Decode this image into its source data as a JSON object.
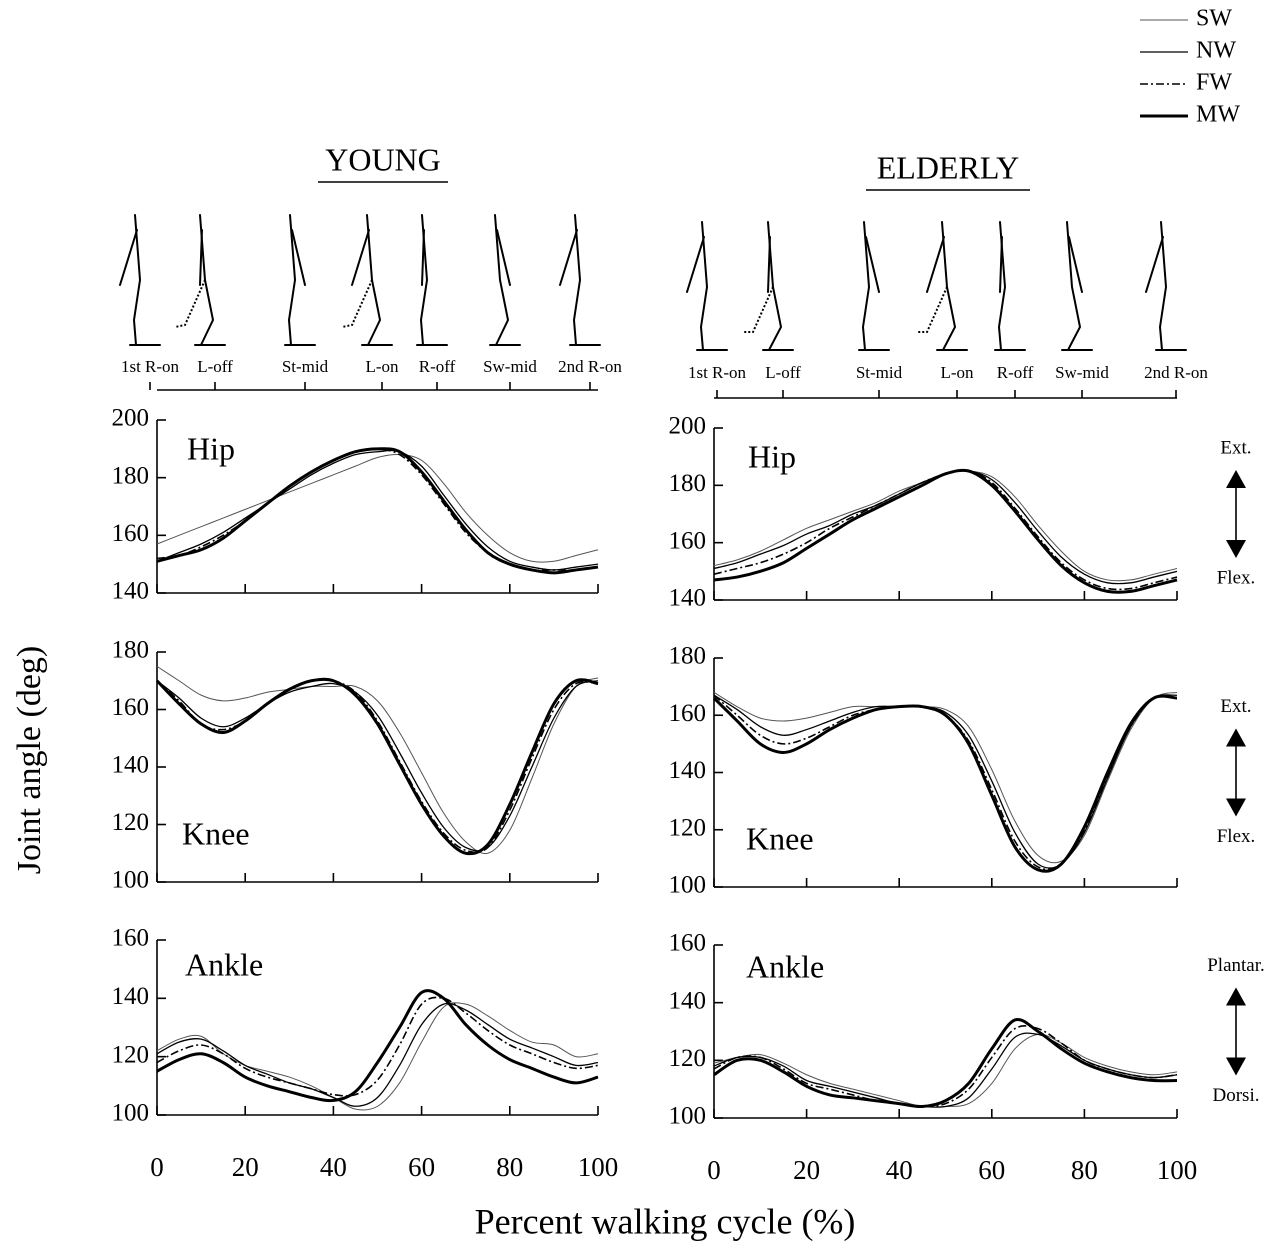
{
  "titles": [
    "YOUNG",
    "ELDERLY"
  ],
  "phases": [
    [
      "1st R-on",
      "L-off",
      "St-mid",
      "L-on",
      "R-off",
      "Sw-mid",
      "2nd R-on"
    ],
    [
      "1st R-on",
      "L-off",
      "St-mid",
      "L-on",
      "R-off",
      "Sw-mid",
      "2nd R-on"
    ]
  ],
  "y_label": "Joint angle (deg)",
  "x_label": "Percent walking cycle (%)",
  "chart_data": [
    {
      "type": "line",
      "label": "Hip",
      "xlim": [
        0,
        100
      ],
      "xticks": [
        0,
        20,
        40,
        60,
        80,
        100
      ],
      "xtick_labels": false,
      "ylim": [
        140,
        200
      ],
      "yticks": [
        140,
        160,
        180,
        200
      ],
      "x": [
        0,
        5,
        10,
        15,
        20,
        25,
        30,
        35,
        40,
        45,
        50,
        55,
        60,
        65,
        70,
        75,
        80,
        85,
        90,
        95,
        100
      ],
      "series": [
        {
          "name": "SW",
          "color": "#555555",
          "width": 1,
          "dash": "none",
          "values": [
            157,
            160,
            163,
            166,
            169,
            172,
            175,
            178,
            181,
            184,
            187,
            188,
            186,
            178,
            168,
            160,
            154,
            151,
            151,
            153,
            155
          ]
        },
        {
          "name": "NW",
          "color": "#000000",
          "width": 1.3,
          "dash": "none",
          "values": [
            151,
            154,
            157,
            161,
            166,
            171,
            176,
            181,
            185,
            188,
            189,
            189,
            184,
            174,
            164,
            156,
            151,
            149,
            148,
            149,
            150
          ]
        },
        {
          "name": "FW",
          "color": "#000000",
          "width": 1.6,
          "dash": "8 3 2 3",
          "values": [
            152,
            153,
            156,
            160,
            165,
            171,
            177,
            182,
            186,
            189,
            190,
            188,
            181,
            171,
            161,
            154,
            150,
            148,
            148,
            148,
            149
          ]
        },
        {
          "name": "MW",
          "color": "#000000",
          "width": 3,
          "dash": "none",
          "values": [
            151,
            153,
            155,
            159,
            165,
            171,
            177,
            182,
            186,
            189,
            190,
            189,
            182,
            172,
            162,
            154,
            150,
            148,
            147,
            148,
            149
          ]
        }
      ]
    },
    {
      "type": "line",
      "label": "Knee",
      "xlim": [
        0,
        100
      ],
      "xticks": [
        0,
        20,
        40,
        60,
        80,
        100
      ],
      "xtick_labels": false,
      "ylim": [
        100,
        180
      ],
      "yticks": [
        100,
        120,
        140,
        160,
        180
      ],
      "x": [
        0,
        5,
        10,
        15,
        20,
        25,
        30,
        35,
        40,
        45,
        50,
        55,
        60,
        65,
        70,
        75,
        80,
        85,
        90,
        95,
        100
      ],
      "series": [
        {
          "name": "SW",
          "color": "#555555",
          "width": 1,
          "dash": "none",
          "values": [
            175,
            170,
            165,
            163,
            164,
            166,
            167,
            168,
            168,
            168,
            163,
            152,
            138,
            124,
            114,
            110,
            118,
            136,
            155,
            168,
            171
          ]
        },
        {
          "name": "NW",
          "color": "#000000",
          "width": 1.3,
          "dash": "none",
          "values": [
            170,
            164,
            157,
            154,
            157,
            162,
            166,
            168,
            169,
            166,
            158,
            145,
            131,
            119,
            112,
            112,
            123,
            140,
            157,
            168,
            170
          ]
        },
        {
          "name": "FW",
          "color": "#000000",
          "width": 1.6,
          "dash": "8 3 2 3",
          "values": [
            170,
            163,
            155,
            153,
            156,
            162,
            167,
            170,
            170,
            166,
            156,
            142,
            128,
            117,
            111,
            112,
            125,
            143,
            160,
            169,
            169
          ]
        },
        {
          "name": "MW",
          "color": "#000000",
          "width": 3,
          "dash": "none",
          "values": [
            170,
            162,
            155,
            152,
            156,
            162,
            167,
            170,
            170,
            165,
            155,
            141,
            127,
            116,
            110,
            113,
            127,
            145,
            162,
            170,
            169
          ]
        }
      ]
    },
    {
      "type": "line",
      "label": "Ankle",
      "xlim": [
        0,
        100
      ],
      "xticks": [
        0,
        20,
        40,
        60,
        80,
        100
      ],
      "xtick_labels": true,
      "ylim": [
        100,
        160
      ],
      "yticks": [
        100,
        120,
        140,
        160
      ],
      "x": [
        0,
        5,
        10,
        15,
        20,
        25,
        30,
        35,
        40,
        45,
        50,
        55,
        60,
        65,
        70,
        75,
        80,
        85,
        90,
        95,
        100
      ],
      "series": [
        {
          "name": "SW",
          "color": "#555555",
          "width": 1,
          "dash": "none",
          "values": [
            122,
            126,
            127,
            121,
            117,
            115,
            113,
            110,
            106,
            102,
            103,
            111,
            125,
            137,
            138,
            134,
            129,
            125,
            124,
            120,
            121
          ]
        },
        {
          "name": "NW",
          "color": "#000000",
          "width": 1.3,
          "dash": "none",
          "values": [
            121,
            125,
            126,
            122,
            117,
            114,
            111,
            109,
            106,
            103,
            106,
            117,
            131,
            138,
            136,
            131,
            126,
            123,
            120,
            117,
            118
          ]
        },
        {
          "name": "FW",
          "color": "#000000",
          "width": 1.6,
          "dash": "8 3 2 3",
          "values": [
            118,
            122,
            124,
            121,
            116,
            113,
            111,
            109,
            107,
            107,
            112,
            124,
            138,
            140,
            135,
            129,
            124,
            121,
            118,
            116,
            117
          ]
        },
        {
          "name": "MW",
          "color": "#000000",
          "width": 3,
          "dash": "none",
          "values": [
            115,
            119,
            121,
            118,
            113,
            110,
            108,
            106,
            105,
            108,
            118,
            130,
            142,
            140,
            131,
            124,
            119,
            116,
            113,
            111,
            113
          ]
        }
      ]
    },
    {
      "type": "line",
      "label": "Hip",
      "annotations": [
        "Ext.",
        "Flex."
      ],
      "xlim": [
        0,
        100
      ],
      "xticks": [
        0,
        20,
        40,
        60,
        80,
        100
      ],
      "xtick_labels": false,
      "ylim": [
        140,
        200
      ],
      "yticks": [
        140,
        160,
        180,
        200
      ],
      "x": [
        0,
        5,
        10,
        15,
        20,
        25,
        30,
        35,
        40,
        45,
        50,
        55,
        60,
        65,
        70,
        75,
        80,
        85,
        90,
        95,
        100
      ],
      "series": [
        {
          "name": "SW",
          "color": "#555555",
          "width": 1,
          "dash": "none",
          "values": [
            152,
            154,
            157,
            161,
            165,
            168,
            171,
            174,
            178,
            181,
            184,
            185,
            183,
            176,
            166,
            157,
            150,
            147,
            147,
            149,
            151
          ]
        },
        {
          "name": "NW",
          "color": "#000000",
          "width": 1.3,
          "dash": "none",
          "values": [
            151,
            153,
            156,
            159,
            163,
            166,
            170,
            173,
            177,
            181,
            184,
            185,
            182,
            174,
            164,
            155,
            149,
            146,
            146,
            148,
            150
          ]
        },
        {
          "name": "FW",
          "color": "#000000",
          "width": 1.6,
          "dash": "8 3 2 3",
          "values": [
            149,
            151,
            153,
            156,
            160,
            165,
            169,
            173,
            177,
            181,
            184,
            185,
            181,
            172,
            162,
            153,
            147,
            144,
            144,
            146,
            148
          ]
        },
        {
          "name": "MW",
          "color": "#000000",
          "width": 3,
          "dash": "none",
          "values": [
            147,
            148,
            150,
            153,
            158,
            163,
            168,
            172,
            176,
            180,
            184,
            185,
            180,
            171,
            161,
            152,
            146,
            143,
            143,
            145,
            147
          ]
        }
      ]
    },
    {
      "type": "line",
      "label": "Knee",
      "annotations": [
        "Ext.",
        "Flex."
      ],
      "xlim": [
        0,
        100
      ],
      "xticks": [
        0,
        20,
        40,
        60,
        80,
        100
      ],
      "xtick_labels": false,
      "ylim": [
        100,
        180
      ],
      "yticks": [
        100,
        120,
        140,
        160,
        180
      ],
      "x": [
        0,
        5,
        10,
        15,
        20,
        25,
        30,
        35,
        40,
        45,
        50,
        55,
        60,
        65,
        70,
        75,
        80,
        85,
        90,
        95,
        100
      ],
      "series": [
        {
          "name": "SW",
          "color": "#555555",
          "width": 1,
          "dash": "none",
          "values": [
            168,
            163,
            159,
            158,
            159,
            161,
            163,
            163,
            163,
            163,
            162,
            156,
            141,
            123,
            111,
            109,
            118,
            137,
            155,
            166,
            168
          ]
        },
        {
          "name": "NW",
          "color": "#000000",
          "width": 1.3,
          "dash": "none",
          "values": [
            167,
            162,
            156,
            153,
            155,
            158,
            161,
            163,
            163,
            163,
            161,
            153,
            137,
            119,
            108,
            108,
            119,
            138,
            156,
            166,
            167
          ]
        },
        {
          "name": "FW",
          "color": "#000000",
          "width": 1.6,
          "dash": "8 3 2 3",
          "values": [
            167,
            160,
            153,
            150,
            152,
            156,
            160,
            162,
            163,
            163,
            160,
            151,
            134,
            116,
            107,
            108,
            120,
            139,
            156,
            166,
            166
          ]
        },
        {
          "name": "MW",
          "color": "#000000",
          "width": 3,
          "dash": "none",
          "values": [
            166,
            158,
            150,
            147,
            150,
            155,
            159,
            162,
            163,
            163,
            160,
            150,
            132,
            114,
            106,
            108,
            121,
            140,
            157,
            166,
            166
          ]
        }
      ]
    },
    {
      "type": "line",
      "label": "Ankle",
      "annotations": [
        "Plantar.",
        "Dorsi."
      ],
      "xlim": [
        0,
        100
      ],
      "xticks": [
        0,
        20,
        40,
        60,
        80,
        100
      ],
      "xtick_labels": true,
      "ylim": [
        100,
        160
      ],
      "yticks": [
        100,
        120,
        140,
        160
      ],
      "x": [
        0,
        5,
        10,
        15,
        20,
        25,
        30,
        35,
        40,
        45,
        50,
        55,
        60,
        65,
        70,
        75,
        80,
        85,
        90,
        95,
        100
      ],
      "series": [
        {
          "name": "SW",
          "color": "#555555",
          "width": 1,
          "dash": "none",
          "values": [
            119,
            121,
            122,
            119,
            115,
            112,
            110,
            108,
            106,
            104,
            104,
            105,
            112,
            124,
            129,
            126,
            121,
            118,
            116,
            115,
            116
          ]
        },
        {
          "name": "NW",
          "color": "#000000",
          "width": 1.3,
          "dash": "none",
          "values": [
            118,
            121,
            121,
            118,
            113,
            111,
            109,
            107,
            105,
            104,
            104,
            107,
            117,
            128,
            129,
            125,
            120,
            117,
            115,
            114,
            115
          ]
        },
        {
          "name": "FW",
          "color": "#000000",
          "width": 1.6,
          "dash": "8 3 2 3",
          "values": [
            117,
            121,
            121,
            117,
            112,
            110,
            108,
            106,
            105,
            104,
            105,
            110,
            121,
            131,
            131,
            126,
            120,
            117,
            115,
            114,
            115
          ]
        },
        {
          "name": "MW",
          "color": "#000000",
          "width": 3,
          "dash": "none",
          "values": [
            115,
            120,
            120,
            116,
            111,
            108,
            107,
            106,
            105,
            104,
            106,
            112,
            124,
            134,
            130,
            124,
            119,
            116,
            114,
            113,
            113
          ]
        }
      ]
    }
  ]
}
